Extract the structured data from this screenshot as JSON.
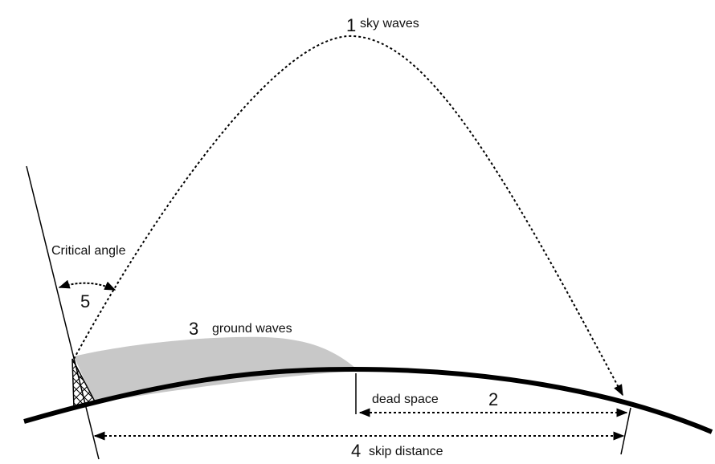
{
  "labels": {
    "sky": {
      "number": "1",
      "text": "sky waves"
    },
    "dead": {
      "number": "2",
      "text": "dead space"
    },
    "ground": {
      "number": "3",
      "text": "ground waves"
    },
    "skip": {
      "number": "4",
      "text": "skip distance"
    },
    "angle": {
      "number": "5",
      "text": "Critical angle"
    }
  },
  "colors": {
    "ink": "#000000",
    "ground_wave_fill": "#c8c8c8",
    "background": "#ffffff"
  },
  "icons": {
    "antenna": "cross-hatched-antenna-icon"
  }
}
